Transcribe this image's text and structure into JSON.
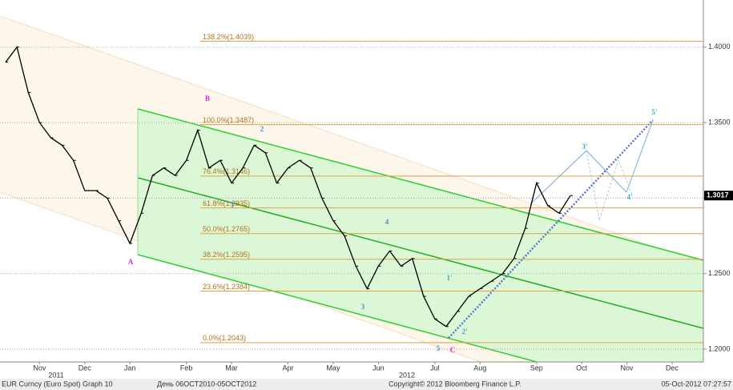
{
  "chart_data": {
    "type": "line",
    "categories": [
      null,
      null,
      null,
      "Nov",
      null,
      null,
      null,
      "Dec",
      null,
      null,
      null,
      "Jan",
      null,
      null,
      null,
      null,
      "Feb",
      null,
      null,
      null,
      "Mar",
      null,
      null,
      null,
      null,
      "Apr",
      null,
      null,
      null,
      "May",
      null,
      null,
      null,
      "Jun",
      null,
      null,
      null,
      null,
      "Jul",
      null,
      null,
      null,
      "Aug",
      null,
      null,
      null,
      null,
      "Sep",
      null,
      null,
      null,
      "Oct",
      null,
      null,
      null,
      "Nov",
      null,
      null,
      null,
      "Dec",
      null,
      null
    ],
    "series": [
      {
        "name": "EUR Curncy (Euro Spot)",
        "color": "#000000",
        "values": [
          1.39,
          1.4,
          1.37,
          1.35,
          1.34,
          1.335,
          1.325,
          1.305,
          1.305,
          1.3,
          1.285,
          1.27,
          1.29,
          1.315,
          1.32,
          1.315,
          1.325,
          1.345,
          1.32,
          1.325,
          1.31,
          1.32,
          1.335,
          1.33,
          1.31,
          1.32,
          1.325,
          1.32,
          1.3,
          1.285,
          1.275,
          1.255,
          1.24,
          1.255,
          1.265,
          1.255,
          1.26,
          1.235,
          1.22,
          1.215,
          1.225,
          1.235,
          1.24,
          1.245,
          1.25,
          1.26,
          1.28,
          1.31,
          1.295,
          1.29,
          1.3017,
          null,
          null,
          null,
          null,
          null,
          null,
          null,
          null,
          null,
          null,
          null
        ]
      }
    ],
    "ylim": [
      1.1915,
      1.4312
    ],
    "yticks": [
      {
        "value": 1.2,
        "label": "1.2000"
      },
      {
        "value": 1.25,
        "label": "1.2500"
      },
      {
        "value": 1.3,
        "label": "1.3000"
      },
      {
        "value": 1.35,
        "label": "1.3500"
      },
      {
        "value": 1.4,
        "label": "1.4000"
      }
    ],
    "last_price": {
      "value": 1.3017,
      "label": "1.3017"
    },
    "grid": true,
    "levels": [
      {
        "label": "138.2%(1.4039)",
        "value": 1.4039
      },
      {
        "label": "100.0%(1.3487)",
        "value": 1.3487
      },
      {
        "label": "76.4%(1.3146)",
        "value": 1.3146
      },
      {
        "label": "61.8%(1.2935)",
        "value": 1.2935
      },
      {
        "label": "50.0%(1.2765)",
        "value": 1.2765
      },
      {
        "label": "38.2%(1.2595)",
        "value": 1.2595
      },
      {
        "label": "23.6%(1.2384)",
        "value": 1.2384
      },
      {
        "label": "0.0%(1.2043)",
        "value": 1.2043
      }
    ],
    "wave_labels": [
      "A",
      "B",
      "C",
      "1",
      "2",
      "3",
      "4",
      "5",
      "1'",
      "2'",
      "3'",
      "4'",
      "5'"
    ],
    "years": [
      "2011",
      "2012"
    ],
    "footer": [
      "EUR Curncy (Euro Spot) Graph 10",
      "День 06OCT2010-05OCT2012",
      "Copyright© 2012 Bloomberg Finance L.P.",
      "05-Oct-2012 07:27:57"
    ]
  }
}
